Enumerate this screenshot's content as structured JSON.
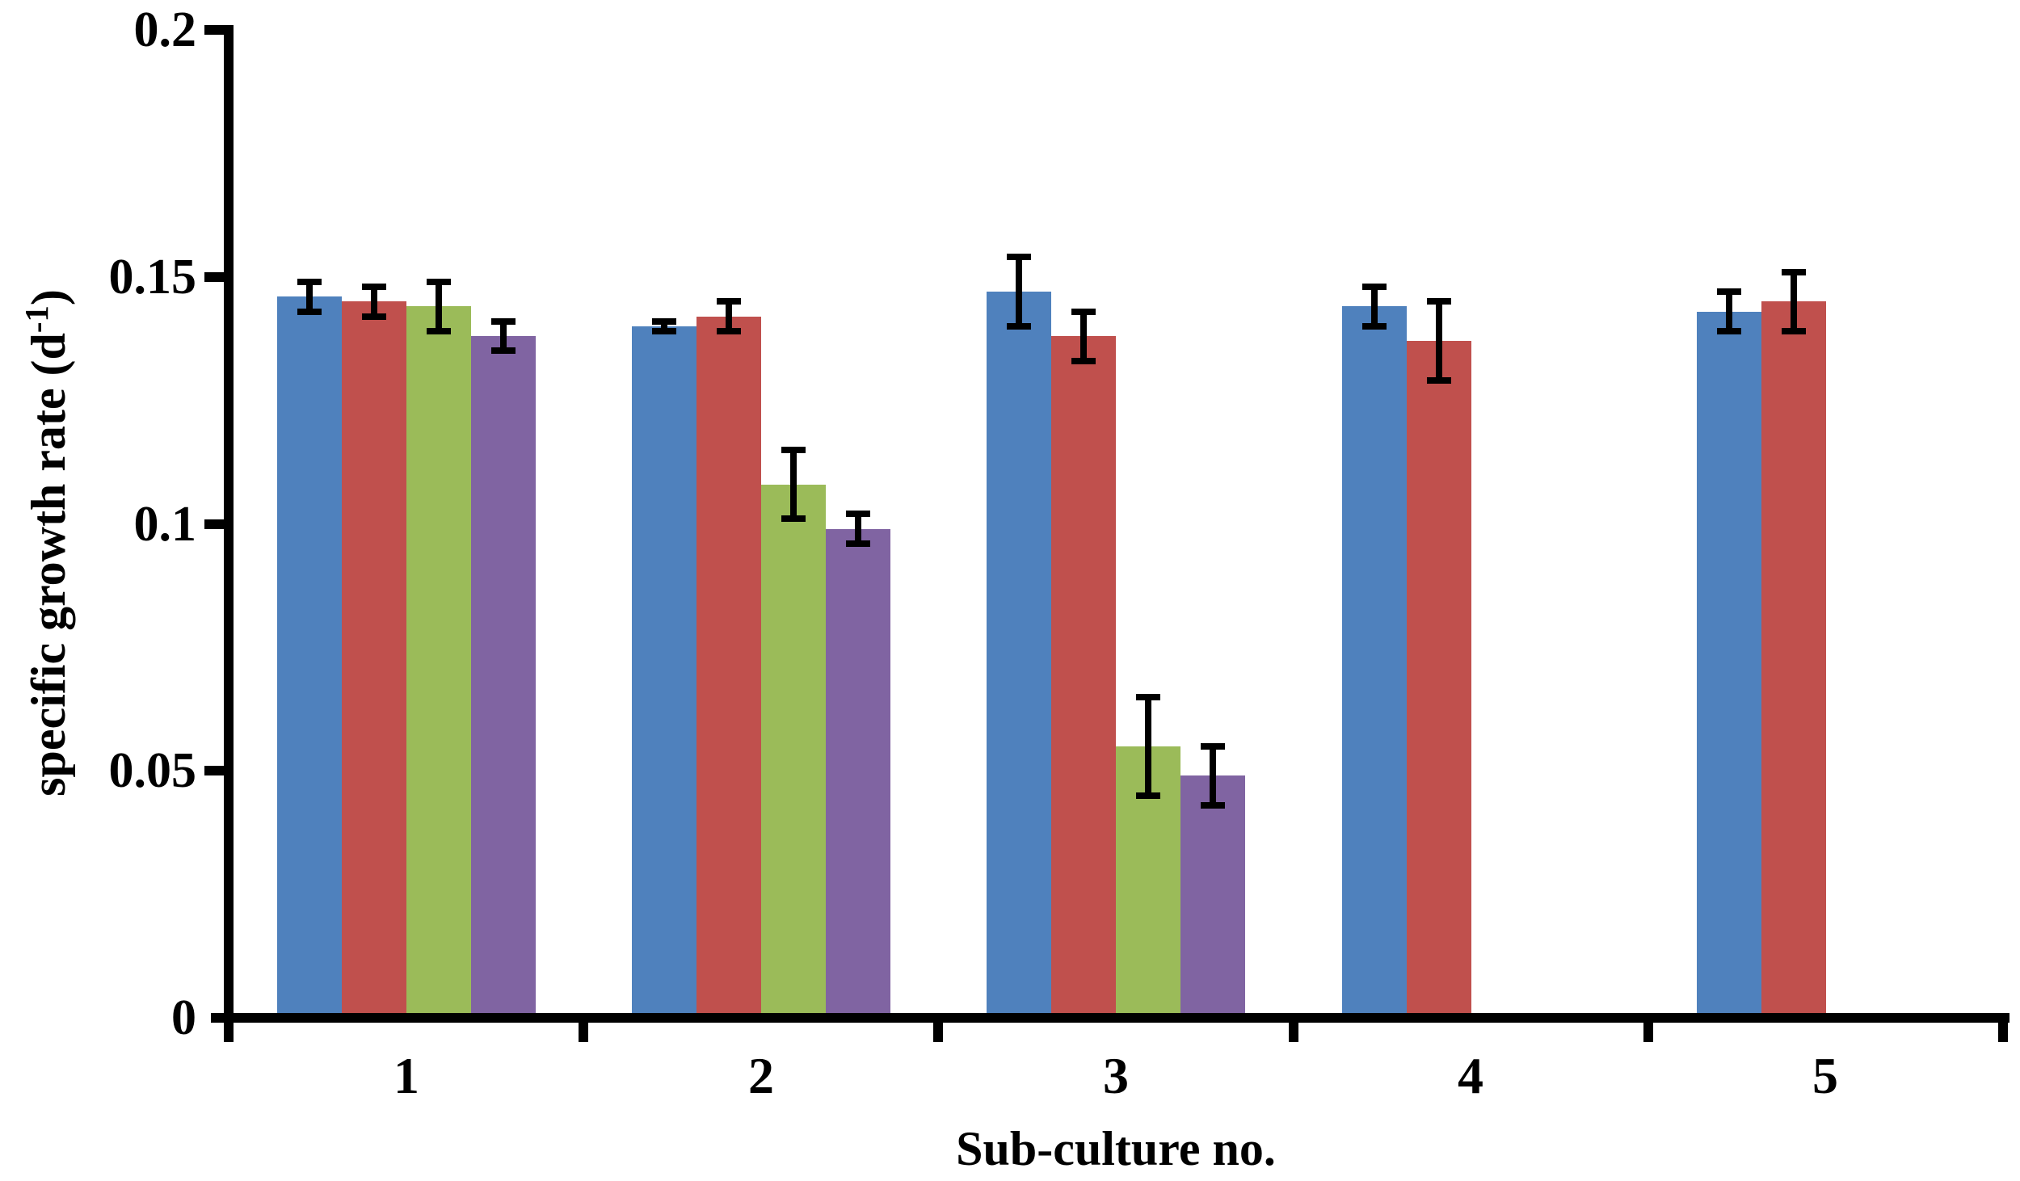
{
  "chart_data": {
    "type": "bar",
    "title": "",
    "xlabel": "Sub-culture no.",
    "ylabel_parts": {
      "prefix": "specific growth rate (d",
      "superscript": "-1",
      "suffix": ")"
    },
    "ylim": [
      0,
      0.2
    ],
    "y_ticks": [
      {
        "label": "0",
        "value": 0.0
      },
      {
        "label": "0.05",
        "value": 0.05
      },
      {
        "label": "0.1",
        "value": 0.1
      },
      {
        "label": "0.15",
        "value": 0.15
      },
      {
        "label": "0.2",
        "value": 0.2
      }
    ],
    "categories": [
      "1",
      "2",
      "3",
      "4",
      "5"
    ],
    "series": [
      {
        "name": "series-blue",
        "color": "#4F81BD",
        "values": [
          0.146,
          0.14,
          0.147,
          0.144,
          0.143
        ],
        "errors": [
          0.003,
          0.001,
          0.007,
          0.004,
          0.004
        ]
      },
      {
        "name": "series-red",
        "color": "#C0504D",
        "values": [
          0.145,
          0.142,
          0.138,
          0.137,
          0.145
        ],
        "errors": [
          0.003,
          0.003,
          0.005,
          0.008,
          0.006
        ]
      },
      {
        "name": "series-green",
        "color": "#9BBB59",
        "values": [
          0.144,
          0.108,
          0.055,
          null,
          null
        ],
        "errors": [
          0.005,
          0.007,
          0.01,
          null,
          null
        ]
      },
      {
        "name": "series-purple",
        "color": "#8064A2",
        "values": [
          0.138,
          0.099,
          0.049,
          null,
          null
        ],
        "errors": [
          0.003,
          0.003,
          0.006,
          null,
          null
        ]
      }
    ],
    "error_bars": true,
    "grid": false,
    "legend": {
      "visible": false
    },
    "axis_color": "#000000",
    "background_color": "#FFFFFF"
  }
}
